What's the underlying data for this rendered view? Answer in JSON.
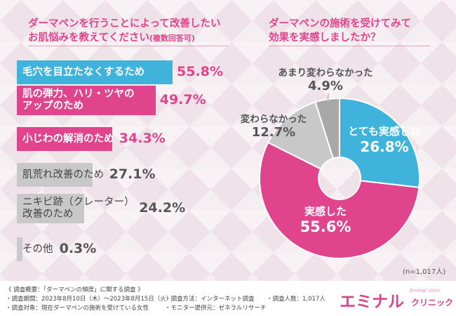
{
  "left_question": {
    "line1": "ダーマペンを行うことによって改善したい",
    "line2": "お肌悩みを教えてください",
    "note": "(複数回答可)"
  },
  "right_question": {
    "line1": "ダーマペンの施術を受けてみて",
    "line2": "効果を実感しましたか？"
  },
  "chart_data": [
    {
      "type": "bar",
      "orientation": "horizontal",
      "categories": [
        "毛穴を目立たなくするため",
        "肌の弾力、ハリ・ツヤのアップのため",
        "小じわの解消のため",
        "肌荒れ改善のため",
        "ニキビ跡（クレーター）改善のため",
        "その他"
      ],
      "labels": [
        [
          "毛穴を目立たなくするため"
        ],
        [
          "肌の弾力、ハリ・ツヤの",
          "アップのため"
        ],
        [
          "小じわの解消のため"
        ],
        [
          "肌荒れ改善のため"
        ],
        [
          "ニキビ跡（クレーター）",
          "改善のため"
        ],
        [
          "その他"
        ]
      ],
      "values": [
        55.8,
        49.7,
        34.3,
        27.1,
        24.2,
        0.3
      ],
      "value_labels": [
        "55.8%",
        "49.7%",
        "34.3%",
        "27.1%",
        "24.2%",
        "0.3%"
      ],
      "colors": [
        "#3fb3db",
        "#e0448c",
        "#e0448c",
        "#c8c8c8",
        "#c8c8c8",
        "#c8c8c8"
      ],
      "label_colors": [
        "#e0448c",
        "#e0448c",
        "#e0448c",
        "#555555",
        "#555555",
        "#555555"
      ]
    },
    {
      "type": "pie",
      "style": "donut",
      "categories": [
        "とても実感した",
        "実感した",
        "変わらなかった",
        "あまり変わらなかった"
      ],
      "values": [
        26.8,
        55.6,
        12.7,
        4.9
      ],
      "value_labels": [
        "26.8%",
        "55.6%",
        "12.7%",
        "4.9%"
      ],
      "colors": [
        "#3fb3db",
        "#e0448c",
        "#c8c8c8",
        "#a8a8a8"
      ],
      "start_angle_deg": 0,
      "direction": "clockwise",
      "n_label": "(n=1,017人)"
    }
  ],
  "footer": {
    "overview": "《 調査概要：「ダーマペンの頻度」に関する調査 》",
    "period": "・調査期間：2023年8月10日（木）～2023年8月15日（火）",
    "target": "・調査対象：現在ダーマペンの施術を受けている女性",
    "method": "・調査方法：インターネット調査",
    "provider": "・モニター提供元：ゼネラルリサーチ",
    "count": "・調査人数：1,017人",
    "logo_main": "エミナル",
    "logo_sub": "クリニック",
    "logo_small": "Eminal clinic"
  }
}
